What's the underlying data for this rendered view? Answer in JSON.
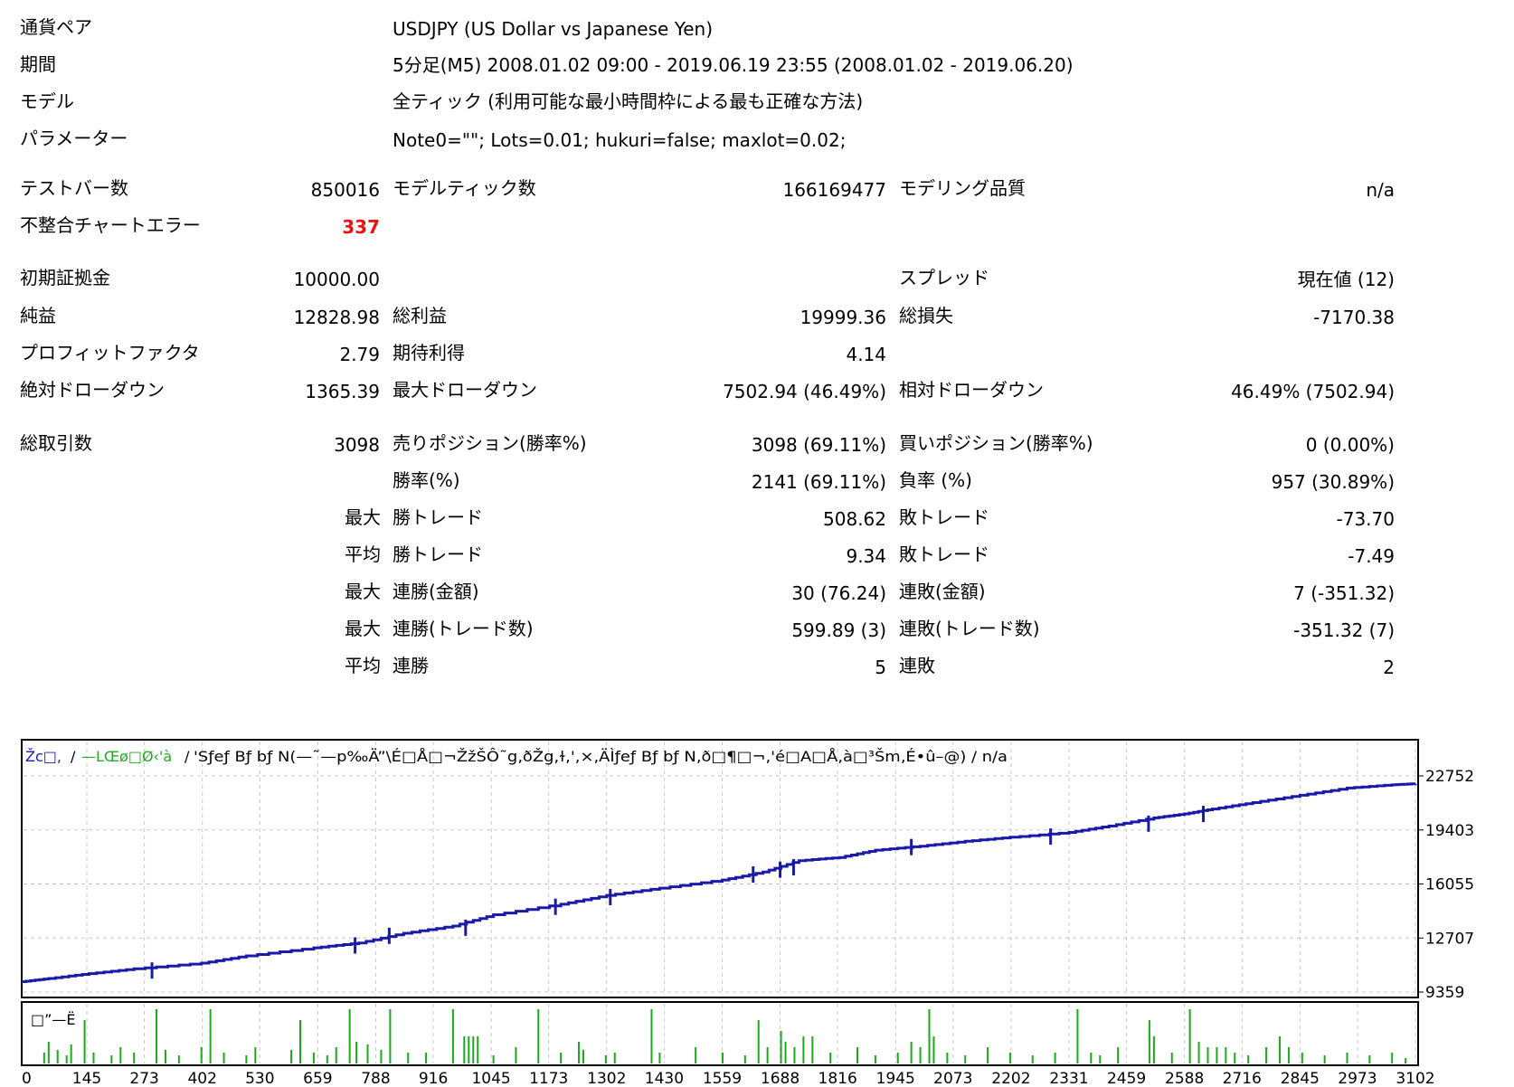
{
  "report": {
    "header": [
      {
        "label": "通貨ペア",
        "value": "USDJPY (US Dollar vs Japanese Yen)"
      },
      {
        "label": "期間",
        "value": "5分足(M5) 2008.01.02 09:00 - 2019.06.19 23:55 (2008.01.02 - 2019.06.20)"
      },
      {
        "label": "モデル",
        "value": "全ティック (利用可能な最小時間枠による最も正確な方法)"
      },
      {
        "label": "パラメーター",
        "value": "Note0=\"\"; Lots=0.01; hukuri=false; maxlot=0.02;"
      }
    ],
    "test_bars": {
      "label": "テストバー数",
      "value": "850016"
    },
    "model_ticks": {
      "label": "モデルティック数",
      "value": "166169477"
    },
    "model_quality": {
      "label": "モデリング品質",
      "value": "n/a"
    },
    "mismatch_errors": {
      "label": "不整合チャートエラー",
      "value": "337"
    },
    "initial_deposit": {
      "label": "初期証拠金",
      "value": "10000.00"
    },
    "spread": {
      "label": "スプレッド",
      "value": "現在値 (12)"
    },
    "net_profit": {
      "label": "純益",
      "value": "12828.98"
    },
    "gross_profit": {
      "label": "総利益",
      "value": "19999.36"
    },
    "gross_loss": {
      "label": "総損失",
      "value": "-7170.38"
    },
    "profit_factor": {
      "label": "プロフィットファクタ",
      "value": "2.79"
    },
    "expected_payoff": {
      "label": "期待利得",
      "value": "4.14"
    },
    "abs_drawdown": {
      "label": "絶対ドローダウン",
      "value": "1365.39"
    },
    "max_drawdown": {
      "label": "最大ドローダウン",
      "value": "7502.94 (46.49%)"
    },
    "rel_drawdown": {
      "label": "相対ドローダウン",
      "value": "46.49% (7502.94)"
    },
    "total_trades": {
      "label": "総取引数",
      "value": "3098"
    },
    "short_positions": {
      "label": "売りポジション(勝率%)",
      "value": "3098 (69.11%)"
    },
    "long_positions": {
      "label": "買いポジション(勝率%)",
      "value": "0 (0.00%)"
    },
    "stats_rows": [
      {
        "prefix": "",
        "win_label": "勝率(%)",
        "win_value": "2141 (69.11%)",
        "loss_label": "負率 (%)",
        "loss_value": "957 (30.89%)"
      },
      {
        "prefix": "最大",
        "win_label": "勝トレード",
        "win_value": "508.62",
        "loss_label": "敗トレード",
        "loss_value": "-73.70"
      },
      {
        "prefix": "平均",
        "win_label": "勝トレード",
        "win_value": "9.34",
        "loss_label": "敗トレード",
        "loss_value": "-7.49"
      },
      {
        "prefix": "最大",
        "win_label": "連勝(金額)",
        "win_value": "30 (76.24)",
        "loss_label": "連敗(金額)",
        "loss_value": "7 (-351.32)"
      },
      {
        "prefix": "最大",
        "win_label": "連勝(トレード数)",
        "win_value": "599.89 (3)",
        "loss_label": "連敗(トレード数)",
        "loss_value": "-351.32 (7)"
      },
      {
        "prefix": "平均",
        "win_label": "連勝",
        "win_value": "5",
        "loss_label": "連敗",
        "loss_value": "2"
      }
    ]
  },
  "chart_data": {
    "type": "line",
    "header_blue": "Žc□,",
    "header_sep1": "/",
    "header_green": "—LŒø□Ø‹'à",
    "header_sep2": "/",
    "header_rest": "'Sƒeƒ Bƒ bƒ N(—˜—p‰Ä”\\É□Å□¬ŽžŠÔ˜g‚ðŽg‚ɫ,',×‚ÄÌƒeƒ Bƒ bƒ N‚ð□¶□¬,'é□A□Å‚à□³Šm‚É•û–@) / n/a",
    "volume_label": "□”—Ë",
    "x_ticks": [
      "0",
      "145",
      "273",
      "402",
      "530",
      "659",
      "788",
      "916",
      "1045",
      "1173",
      "1302",
      "1430",
      "1559",
      "1688",
      "1816",
      "1945",
      "2073",
      "2202",
      "2331",
      "2459",
      "2588",
      "2716",
      "2845",
      "2973",
      "3102"
    ],
    "y_ticks": [
      "22752",
      "19403",
      "16055",
      "12707",
      "9359"
    ],
    "ylim": [
      9359,
      22752
    ],
    "xlim": [
      0,
      3102
    ],
    "balance": {
      "color": "#1a1aa8",
      "points": [
        [
          0,
          10000
        ],
        [
          60,
          10200
        ],
        [
          150,
          10500
        ],
        [
          250,
          10800
        ],
        [
          400,
          11150
        ],
        [
          500,
          11600
        ],
        [
          650,
          12100
        ],
        [
          750,
          12400
        ],
        [
          850,
          13000
        ],
        [
          960,
          13450
        ],
        [
          1050,
          14150
        ],
        [
          1200,
          14800
        ],
        [
          1302,
          15350
        ],
        [
          1420,
          15800
        ],
        [
          1559,
          16300
        ],
        [
          1650,
          16800
        ],
        [
          1730,
          17500
        ],
        [
          1820,
          17700
        ],
        [
          1900,
          18150
        ],
        [
          2000,
          18400
        ],
        [
          2100,
          18700
        ],
        [
          2200,
          18950
        ],
        [
          2331,
          19250
        ],
        [
          2420,
          19650
        ],
        [
          2520,
          20150
        ],
        [
          2588,
          20400
        ],
        [
          2650,
          20700
        ],
        [
          2740,
          21100
        ],
        [
          2845,
          21550
        ],
        [
          2950,
          22000
        ],
        [
          3050,
          22200
        ],
        [
          3102,
          22270
        ]
      ],
      "steps": [
        [
          290,
          10750
        ],
        [
          742,
          12300
        ],
        [
          818,
          12900
        ],
        [
          988,
          13400
        ],
        [
          1188,
          14700
        ],
        [
          1310,
          15300
        ],
        [
          1628,
          16700
        ],
        [
          1688,
          17000
        ],
        [
          1718,
          17150
        ],
        [
          1980,
          18400
        ],
        [
          2290,
          19050
        ],
        [
          2508,
          19850
        ],
        [
          2630,
          20450
        ]
      ]
    },
    "volume": {
      "color": "#1aaa1a",
      "bars": [
        [
          50,
          0.2
        ],
        [
          60,
          0.4
        ],
        [
          80,
          0.25
        ],
        [
          100,
          0.15
        ],
        [
          110,
          0.35
        ],
        [
          140,
          0.8
        ],
        [
          160,
          0.2
        ],
        [
          200,
          0.15
        ],
        [
          220,
          0.3
        ],
        [
          250,
          0.2
        ],
        [
          300,
          1.0
        ],
        [
          320,
          0.25
        ],
        [
          350,
          0.15
        ],
        [
          400,
          0.3
        ],
        [
          420,
          1.0
        ],
        [
          450,
          0.2
        ],
        [
          500,
          0.15
        ],
        [
          520,
          0.3
        ],
        [
          600,
          0.25
        ],
        [
          620,
          0.8
        ],
        [
          650,
          0.2
        ],
        [
          680,
          0.15
        ],
        [
          700,
          0.3
        ],
        [
          730,
          1.0
        ],
        [
          745,
          0.4
        ],
        [
          770,
          0.35
        ],
        [
          800,
          0.25
        ],
        [
          820,
          1.0
        ],
        [
          860,
          0.2
        ],
        [
          900,
          0.2
        ],
        [
          960,
          1.0
        ],
        [
          985,
          0.5
        ],
        [
          995,
          0.5
        ],
        [
          1005,
          0.5
        ],
        [
          1015,
          0.5
        ],
        [
          1050,
          0.15
        ],
        [
          1100,
          0.3
        ],
        [
          1150,
          1.0
        ],
        [
          1200,
          0.2
        ],
        [
          1240,
          0.4
        ],
        [
          1250,
          0.25
        ],
        [
          1300,
          0.15
        ],
        [
          1320,
          0.2
        ],
        [
          1402,
          1.0
        ],
        [
          1420,
          0.2
        ],
        [
          1500,
          0.3
        ],
        [
          1560,
          0.2
        ],
        [
          1610,
          0.15
        ],
        [
          1640,
          0.8
        ],
        [
          1660,
          0.3
        ],
        [
          1690,
          0.6
        ],
        [
          1700,
          0.4
        ],
        [
          1720,
          0.3
        ],
        [
          1740,
          0.5
        ],
        [
          1760,
          0.5
        ],
        [
          1800,
          0.2
        ],
        [
          1860,
          0.3
        ],
        [
          1900,
          0.15
        ],
        [
          1950,
          0.2
        ],
        [
          1980,
          0.4
        ],
        [
          2000,
          0.3
        ],
        [
          2020,
          1.0
        ],
        [
          2030,
          0.5
        ],
        [
          2060,
          0.2
        ],
        [
          2100,
          0.15
        ],
        [
          2150,
          0.3
        ],
        [
          2200,
          0.2
        ],
        [
          2250,
          0.15
        ],
        [
          2300,
          0.2
        ],
        [
          2350,
          1.0
        ],
        [
          2380,
          0.2
        ],
        [
          2400,
          0.15
        ],
        [
          2440,
          0.3
        ],
        [
          2510,
          0.8
        ],
        [
          2520,
          0.5
        ],
        [
          2560,
          0.2
        ],
        [
          2600,
          1.0
        ],
        [
          2620,
          0.4
        ],
        [
          2640,
          0.3
        ],
        [
          2660,
          0.3
        ],
        [
          2680,
          0.3
        ],
        [
          2700,
          0.2
        ],
        [
          2730,
          0.15
        ],
        [
          2770,
          0.3
        ],
        [
          2800,
          0.5
        ],
        [
          2820,
          0.3
        ],
        [
          2850,
          0.2
        ],
        [
          2900,
          0.15
        ],
        [
          2950,
          0.2
        ],
        [
          3000,
          0.15
        ],
        [
          3050,
          0.2
        ],
        [
          3080,
          0.1
        ]
      ]
    }
  }
}
